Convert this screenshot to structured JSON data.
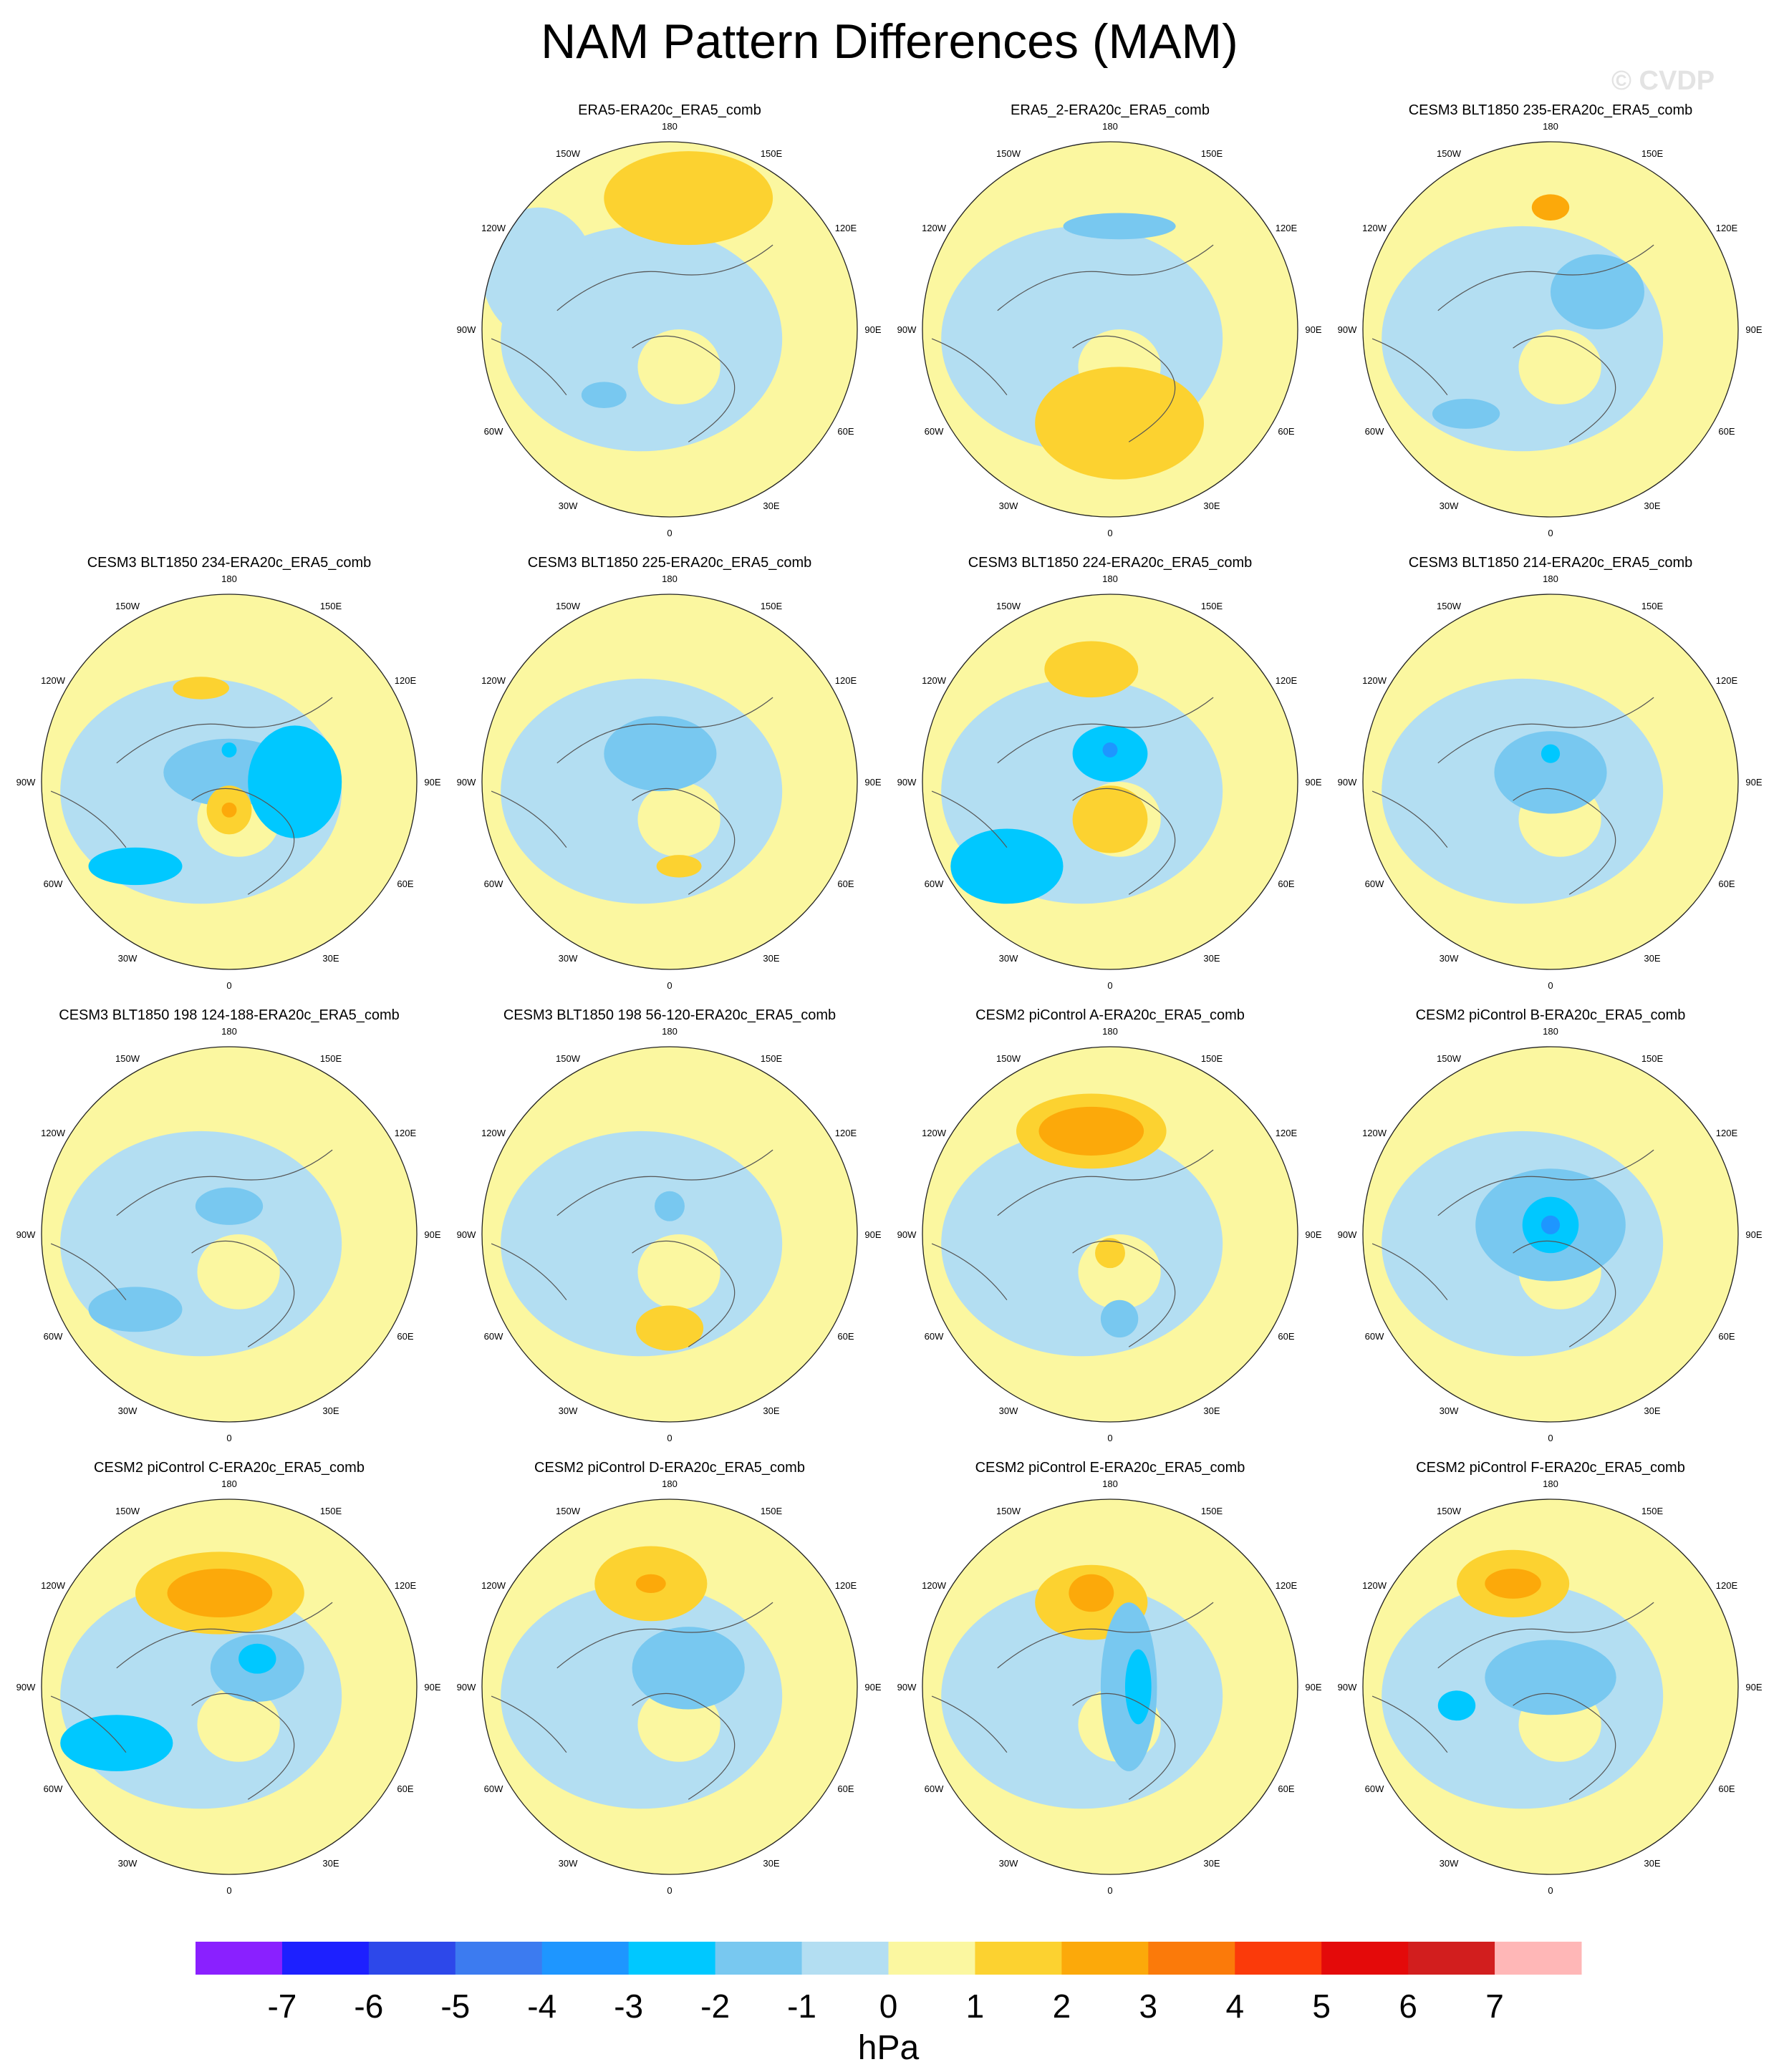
{
  "title": "NAM Pattern Differences (MAM)",
  "watermark": "© CVDP",
  "chart_data": {
    "type": "polar-contour-map",
    "projection": "north-polar-stereographic",
    "season": "MAM",
    "variable": "NAM pattern difference",
    "units": "hPa",
    "lon_labels": [
      "180",
      "150E",
      "120E",
      "90E",
      "60E",
      "30E",
      "0",
      "30W",
      "60W",
      "90W",
      "120W",
      "150W"
    ],
    "colorbar": {
      "ticks": [
        "-7",
        "-6",
        "-5",
        "-4",
        "-3",
        "-2",
        "-1",
        "0",
        "1",
        "2",
        "3",
        "4",
        "5",
        "6",
        "7"
      ],
      "colors": [
        "#8a20ff",
        "#1d20ff",
        "#2d48ea",
        "#3c7bf0",
        "#1e96ff",
        "#00c8ff",
        "#78c8f0",
        "#b3def2",
        "#fbf7a0",
        "#fcd230",
        "#fca90a",
        "#fb7a0a",
        "#fb3a0a",
        "#e40a0a",
        "#d21e1e",
        "#ffb7b7"
      ],
      "units": "hPa"
    },
    "panels": [
      {
        "title": "ERA5-ERA20c_ERA5_comb",
        "row": 0,
        "col": 1,
        "blobs": [
          [
            -0.35,
            0.35,
            0.12,
            0.07,
            -2
          ],
          [
            0.1,
            -0.7,
            0.45,
            0.25,
            1
          ],
          [
            -0.7,
            -0.3,
            0.3,
            0.35,
            -1
          ]
        ]
      },
      {
        "title": "ERA5_2-ERA20c_ERA5_comb",
        "row": 0,
        "col": 2,
        "blobs": [
          [
            0.05,
            -0.55,
            0.3,
            0.07,
            -2
          ],
          [
            0.05,
            0.5,
            0.45,
            0.3,
            1
          ]
        ]
      },
      {
        "title": "CESM3 BLT1850 235-ERA20c_ERA5_comb",
        "row": 0,
        "col": 3,
        "blobs": [
          [
            0.0,
            -0.65,
            0.1,
            0.07,
            2
          ],
          [
            0.25,
            -0.2,
            0.25,
            0.2,
            -2
          ],
          [
            -0.45,
            0.45,
            0.18,
            0.08,
            -2
          ]
        ]
      },
      {
        "title": "CESM3 BLT1850 234-ERA20c_ERA5_comb",
        "row": 1,
        "col": 0,
        "blobs": [
          [
            -0.15,
            -0.5,
            0.15,
            0.06,
            1.6
          ],
          [
            0.0,
            -0.05,
            0.35,
            0.18,
            -2
          ],
          [
            0.35,
            0.0,
            0.25,
            0.3,
            -2.2
          ],
          [
            0.0,
            0.15,
            0.12,
            0.13,
            1.5
          ],
          [
            0.0,
            0.15,
            0.04,
            0.04,
            2.5
          ],
          [
            -0.5,
            0.45,
            0.25,
            0.1,
            -2.2
          ],
          [
            0.0,
            -0.17,
            0.04,
            0.04,
            -3
          ]
        ]
      },
      {
        "title": "CESM3 BLT1850 225-ERA20c_ERA5_comb",
        "row": 1,
        "col": 1,
        "blobs": [
          [
            0.05,
            0.45,
            0.12,
            0.06,
            1.8
          ],
          [
            -0.05,
            -0.15,
            0.3,
            0.2,
            -2
          ]
        ]
      },
      {
        "title": "CESM3 BLT1850 224-ERA20c_ERA5_comb",
        "row": 1,
        "col": 2,
        "blobs": [
          [
            -0.1,
            -0.6,
            0.25,
            0.15,
            1.8
          ],
          [
            0.0,
            -0.15,
            0.2,
            0.15,
            -2.3
          ],
          [
            0.0,
            -0.17,
            0.04,
            0.04,
            -3.3
          ],
          [
            0.0,
            0.2,
            0.2,
            0.18,
            1.7
          ],
          [
            -0.55,
            0.45,
            0.3,
            0.2,
            -2.2
          ]
        ]
      },
      {
        "title": "CESM3 BLT1850 214-ERA20c_ERA5_comb",
        "row": 1,
        "col": 3,
        "blobs": [
          [
            0.0,
            -0.05,
            0.3,
            0.22,
            -2
          ],
          [
            0.0,
            -0.15,
            0.05,
            0.05,
            -3
          ]
        ]
      },
      {
        "title": "CESM3 BLT1850 198 124-188-ERA20c_ERA5_comb",
        "row": 2,
        "col": 0,
        "blobs": [
          [
            0.0,
            -0.15,
            0.18,
            0.1,
            -2
          ],
          [
            -0.5,
            0.4,
            0.25,
            0.12,
            -2
          ]
        ]
      },
      {
        "title": "CESM3 BLT1850 198 56-120-ERA20c_ERA5_comb",
        "row": 2,
        "col": 1,
        "blobs": [
          [
            0.0,
            -0.15,
            0.08,
            0.08,
            -2
          ],
          [
            0.0,
            0.5,
            0.18,
            0.12,
            1.9
          ]
        ]
      },
      {
        "title": "CESM2 piControl A-ERA20c_ERA5_comb",
        "row": 2,
        "col": 2,
        "blobs": [
          [
            -0.1,
            -0.55,
            0.4,
            0.2,
            1.7
          ],
          [
            -0.1,
            -0.55,
            0.28,
            0.13,
            2.6
          ],
          [
            0.0,
            0.1,
            0.08,
            0.08,
            1.5
          ],
          [
            0.05,
            0.45,
            0.1,
            0.1,
            -2
          ]
        ]
      },
      {
        "title": "CESM2 piControl B-ERA20c_ERA5_comb",
        "row": 2,
        "col": 3,
        "blobs": [
          [
            0.0,
            -0.05,
            0.4,
            0.3,
            -2
          ],
          [
            0.0,
            -0.05,
            0.15,
            0.15,
            -3
          ],
          [
            0.0,
            -0.05,
            0.05,
            0.05,
            -3.6
          ]
        ]
      },
      {
        "title": "CESM2 piControl C-ERA20c_ERA5_comb",
        "row": 3,
        "col": 0,
        "blobs": [
          [
            -0.05,
            -0.5,
            0.45,
            0.22,
            1.8
          ],
          [
            -0.05,
            -0.5,
            0.28,
            0.13,
            2.6
          ],
          [
            0.15,
            -0.1,
            0.25,
            0.18,
            -2
          ],
          [
            0.15,
            -0.15,
            0.1,
            0.08,
            -3
          ],
          [
            -0.6,
            0.3,
            0.3,
            0.15,
            -2.2
          ]
        ]
      },
      {
        "title": "CESM2 piControl D-ERA20c_ERA5_comb",
        "row": 3,
        "col": 1,
        "blobs": [
          [
            -0.1,
            -0.55,
            0.3,
            0.2,
            1.8
          ],
          [
            -0.1,
            -0.55,
            0.08,
            0.05,
            2.5
          ],
          [
            0.1,
            -0.1,
            0.3,
            0.22,
            -2
          ]
        ]
      },
      {
        "title": "CESM2 piControl E-ERA20c_ERA5_comb",
        "row": 3,
        "col": 2,
        "blobs": [
          [
            -0.1,
            -0.45,
            0.3,
            0.2,
            1.8
          ],
          [
            -0.1,
            -0.5,
            0.12,
            0.1,
            2.6
          ],
          [
            0.1,
            0.0,
            0.15,
            0.45,
            -2
          ],
          [
            0.15,
            0.0,
            0.07,
            0.2,
            -3
          ]
        ]
      },
      {
        "title": "CESM2 piControl F-ERA20c_ERA5_comb",
        "row": 3,
        "col": 3,
        "blobs": [
          [
            -0.2,
            -0.55,
            0.3,
            0.18,
            1.8
          ],
          [
            -0.2,
            -0.55,
            0.15,
            0.08,
            2.6
          ],
          [
            0.0,
            -0.05,
            0.35,
            0.2,
            -2
          ],
          [
            -0.5,
            0.1,
            0.1,
            0.08,
            -3
          ]
        ]
      }
    ]
  }
}
